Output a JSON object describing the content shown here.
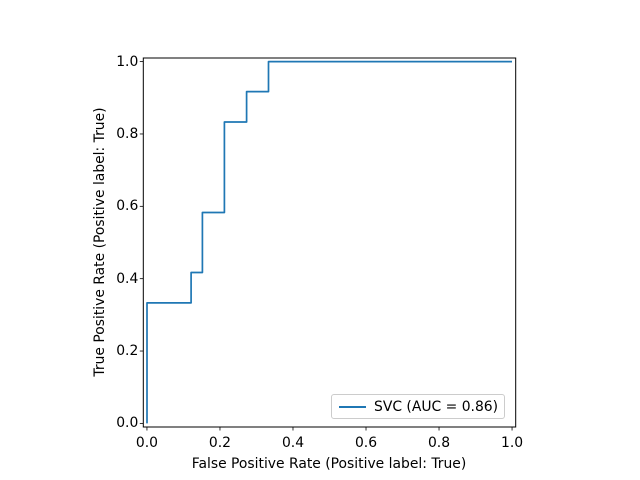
{
  "figure": {
    "background": "#ffffff"
  },
  "chart_data": {
    "type": "line",
    "subtype": "roc_curve_step",
    "title": "",
    "xlabel": "False Positive Rate (Positive label: True)",
    "ylabel": "True Positive Rate (Positive label: True)",
    "xlim": [
      -0.01,
      1.01
    ],
    "ylim": [
      -0.01,
      1.01
    ],
    "xticks": [
      "0.0",
      "0.2",
      "0.4",
      "0.6",
      "0.8",
      "1.0"
    ],
    "yticks": [
      "0.0",
      "0.2",
      "0.4",
      "0.6",
      "0.8",
      "1.0"
    ],
    "grid": false,
    "axes_color": "#000000",
    "legend": {
      "position": "lower right",
      "entries": [
        {
          "label": "SVC (AUC = 0.86)",
          "color": "#1f77b4"
        }
      ]
    },
    "series": [
      {
        "name": "SVC",
        "auc": 0.86,
        "color": "#1f77b4",
        "points": [
          [
            0.0,
            0.0
          ],
          [
            0.0,
            0.333
          ],
          [
            0.121,
            0.333
          ],
          [
            0.121,
            0.417
          ],
          [
            0.152,
            0.417
          ],
          [
            0.152,
            0.583
          ],
          [
            0.212,
            0.583
          ],
          [
            0.212,
            0.833
          ],
          [
            0.273,
            0.833
          ],
          [
            0.273,
            0.917
          ],
          [
            0.333,
            0.917
          ],
          [
            0.333,
            1.0
          ],
          [
            1.0,
            1.0
          ]
        ]
      }
    ]
  }
}
